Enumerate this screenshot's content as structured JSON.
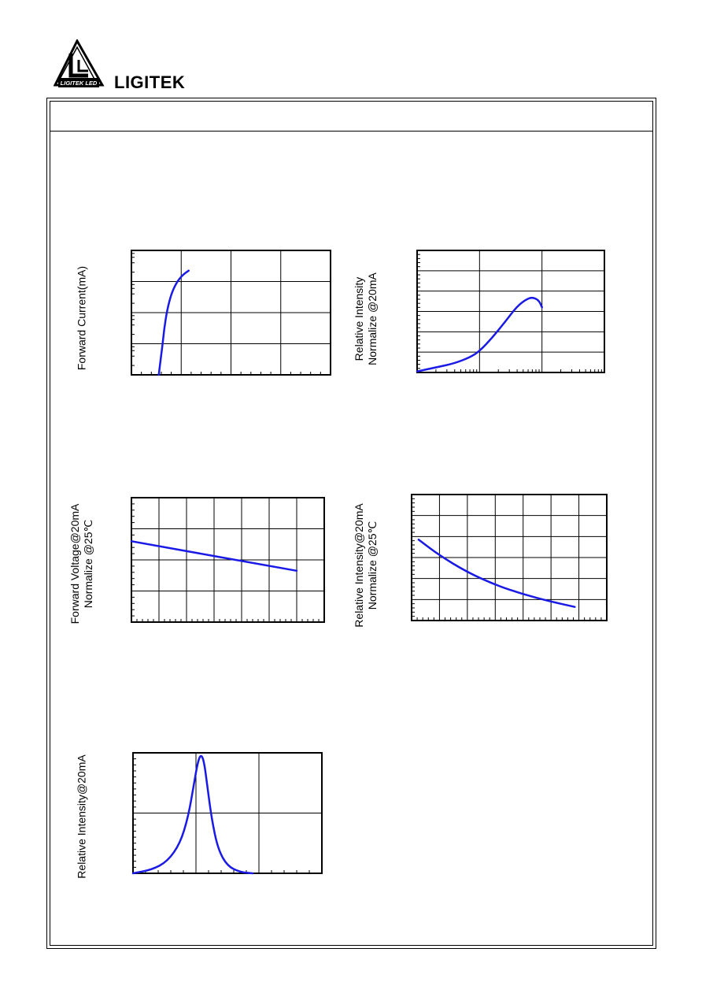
{
  "header": {
    "logo_text": "LIGITEK LED",
    "brand": "LIGITEK"
  },
  "title_row": {
    "text": ""
  },
  "charts": [
    {
      "id": "forward-current",
      "ylabel_lines": [
        "Forward Current(mA)"
      ],
      "chart_data": {
        "type": "line",
        "title": "",
        "xlabel": "",
        "ylabel": "Forward Current(mA)",
        "yscale": "log",
        "grid": true,
        "xlim": [
          0,
          4
        ],
        "ylim": [
          0,
          4
        ],
        "series": [
          {
            "color": "#1a1ae6",
            "x": [
              0.55,
              0.58,
              0.62,
              0.66,
              0.72,
              0.8,
              0.9,
              1.02,
              1.15
            ],
            "y": [
              0.0,
              0.4,
              0.9,
              1.5,
              2.1,
              2.6,
              2.95,
              3.2,
              3.35
            ]
          }
        ]
      }
    },
    {
      "id": "relative-intensity-current",
      "ylabel_lines": [
        "Relative Intensity",
        "Normalize @20mA"
      ],
      "chart_data": {
        "type": "line",
        "title": "",
        "xlabel": "",
        "ylabel": "Relative Intensity Normalize @20mA",
        "xscale": "log",
        "grid": true,
        "xlim": [
          0,
          3
        ],
        "ylim": [
          0,
          6
        ],
        "series": [
          {
            "color": "#1a1ae6",
            "x": [
              0.0,
              0.3,
              0.6,
              0.85,
              1.0,
              1.2,
              1.4,
              1.6,
              1.75,
              1.85,
              1.95,
              2.0
            ],
            "y": [
              0.05,
              0.25,
              0.45,
              0.75,
              1.05,
              1.7,
              2.45,
              3.25,
              3.6,
              3.7,
              3.55,
              3.2
            ]
          }
        ]
      }
    },
    {
      "id": "forward-voltage-temp",
      "ylabel_lines": [
        "Forward Voltage@20mA",
        "Normalize @25℃"
      ],
      "chart_data": {
        "type": "line",
        "title": "",
        "xlabel": "",
        "ylabel": "Forward Voltage@20mA Normalize @25℃",
        "grid": true,
        "xlim": [
          0,
          7
        ],
        "ylim": [
          0,
          4
        ],
        "series": [
          {
            "color": "#1a1ae6",
            "x": [
              0.0,
              6.0
            ],
            "y": [
              2.6,
              1.65
            ]
          }
        ]
      }
    },
    {
      "id": "relative-intensity-temp",
      "ylabel_lines": [
        "Relative Intensity@20mA",
        "Normalize @25℃"
      ],
      "chart_data": {
        "type": "line",
        "title": "",
        "xlabel": "",
        "ylabel": "Relative Intensity@20mA Normalize @25℃",
        "grid": true,
        "xlim": [
          0,
          7
        ],
        "ylim": [
          0,
          6
        ],
        "series": [
          {
            "color": "#1a1ae6",
            "x": [
              0.25,
              1.0,
              2.0,
              3.0,
              4.0,
              5.0,
              5.85
            ],
            "y": [
              3.85,
              3.1,
              2.3,
              1.7,
              1.25,
              0.9,
              0.65
            ]
          }
        ]
      }
    },
    {
      "id": "relative-intensity-wavelength",
      "ylabel_lines": [
        "Relative Intensity@20mA"
      ],
      "chart_data": {
        "type": "line",
        "title": "",
        "xlabel": "",
        "ylabel": "Relative Intensity@20mA",
        "grid": true,
        "xlim": [
          0,
          3
        ],
        "ylim": [
          0,
          2
        ],
        "series": [
          {
            "color": "#1a1ae6",
            "x": [
              0.0,
              0.3,
              0.55,
              0.75,
              0.88,
              0.97,
              1.03,
              1.08,
              1.13,
              1.18,
              1.25,
              1.35,
              1.5,
              1.7,
              1.9
            ],
            "y": [
              0.0,
              0.06,
              0.2,
              0.5,
              0.95,
              1.5,
              1.85,
              1.98,
              1.85,
              1.45,
              0.9,
              0.4,
              0.12,
              0.02,
              0.0
            ]
          }
        ]
      }
    }
  ]
}
